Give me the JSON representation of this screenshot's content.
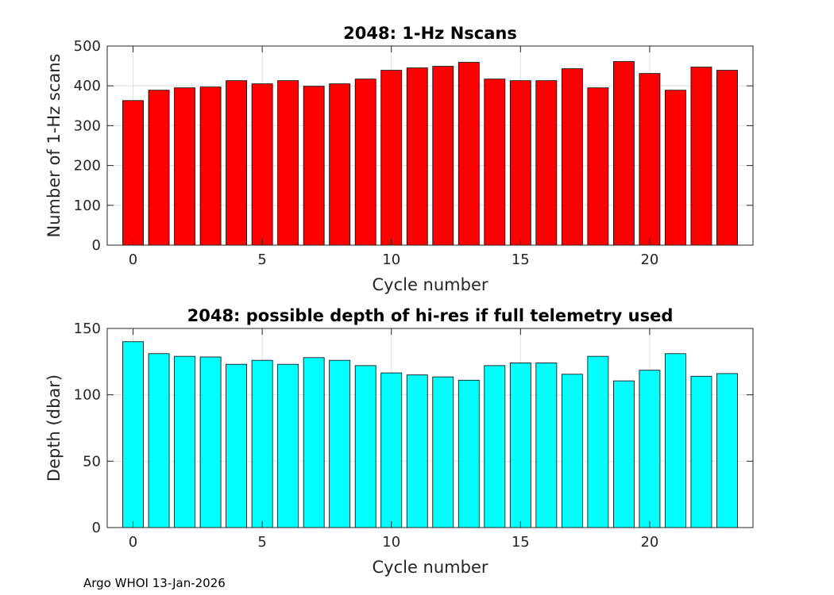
{
  "chart_data": [
    {
      "type": "bar",
      "title": "2048: 1-Hz Nscans",
      "xlabel": "Cycle number",
      "ylabel": "Number of 1-Hz scans",
      "x": [
        0,
        1,
        2,
        3,
        4,
        5,
        6,
        7,
        8,
        9,
        10,
        11,
        12,
        13,
        14,
        15,
        16,
        17,
        18,
        19,
        20,
        21,
        22,
        23
      ],
      "values": [
        363,
        389,
        395,
        397,
        413,
        405,
        413,
        399,
        405,
        417,
        439,
        445,
        449,
        459,
        417,
        413,
        413,
        443,
        395,
        461,
        431,
        389,
        447,
        439
      ],
      "xlim": [
        -1,
        24
      ],
      "ylim": [
        0,
        500
      ],
      "xticks": [
        0,
        5,
        10,
        15,
        20
      ],
      "yticks": [
        0,
        100,
        200,
        300,
        400,
        500
      ],
      "grid": true,
      "bar_color": "#ff0000"
    },
    {
      "type": "bar",
      "title": "2048: possible depth of hi-res if full telemetry used",
      "xlabel": "Cycle number",
      "ylabel": "Depth (dbar)",
      "x": [
        0,
        1,
        2,
        3,
        4,
        5,
        6,
        7,
        8,
        9,
        10,
        11,
        12,
        13,
        14,
        15,
        16,
        17,
        18,
        19,
        20,
        21,
        22,
        23
      ],
      "values": [
        140,
        131,
        129,
        128.5,
        123,
        126,
        123,
        128,
        126,
        122,
        116.5,
        115,
        113.5,
        111,
        122,
        124,
        124,
        115.5,
        129,
        110.5,
        118.5,
        131,
        114,
        116
      ],
      "xlim": [
        -1,
        24
      ],
      "ylim": [
        0,
        150
      ],
      "xticks": [
        0,
        5,
        10,
        15,
        20
      ],
      "yticks": [
        0,
        50,
        100,
        150
      ],
      "grid": true,
      "bar_color": "#00ffff"
    }
  ],
  "footer": "Argo WHOI 13-Jan-2026"
}
